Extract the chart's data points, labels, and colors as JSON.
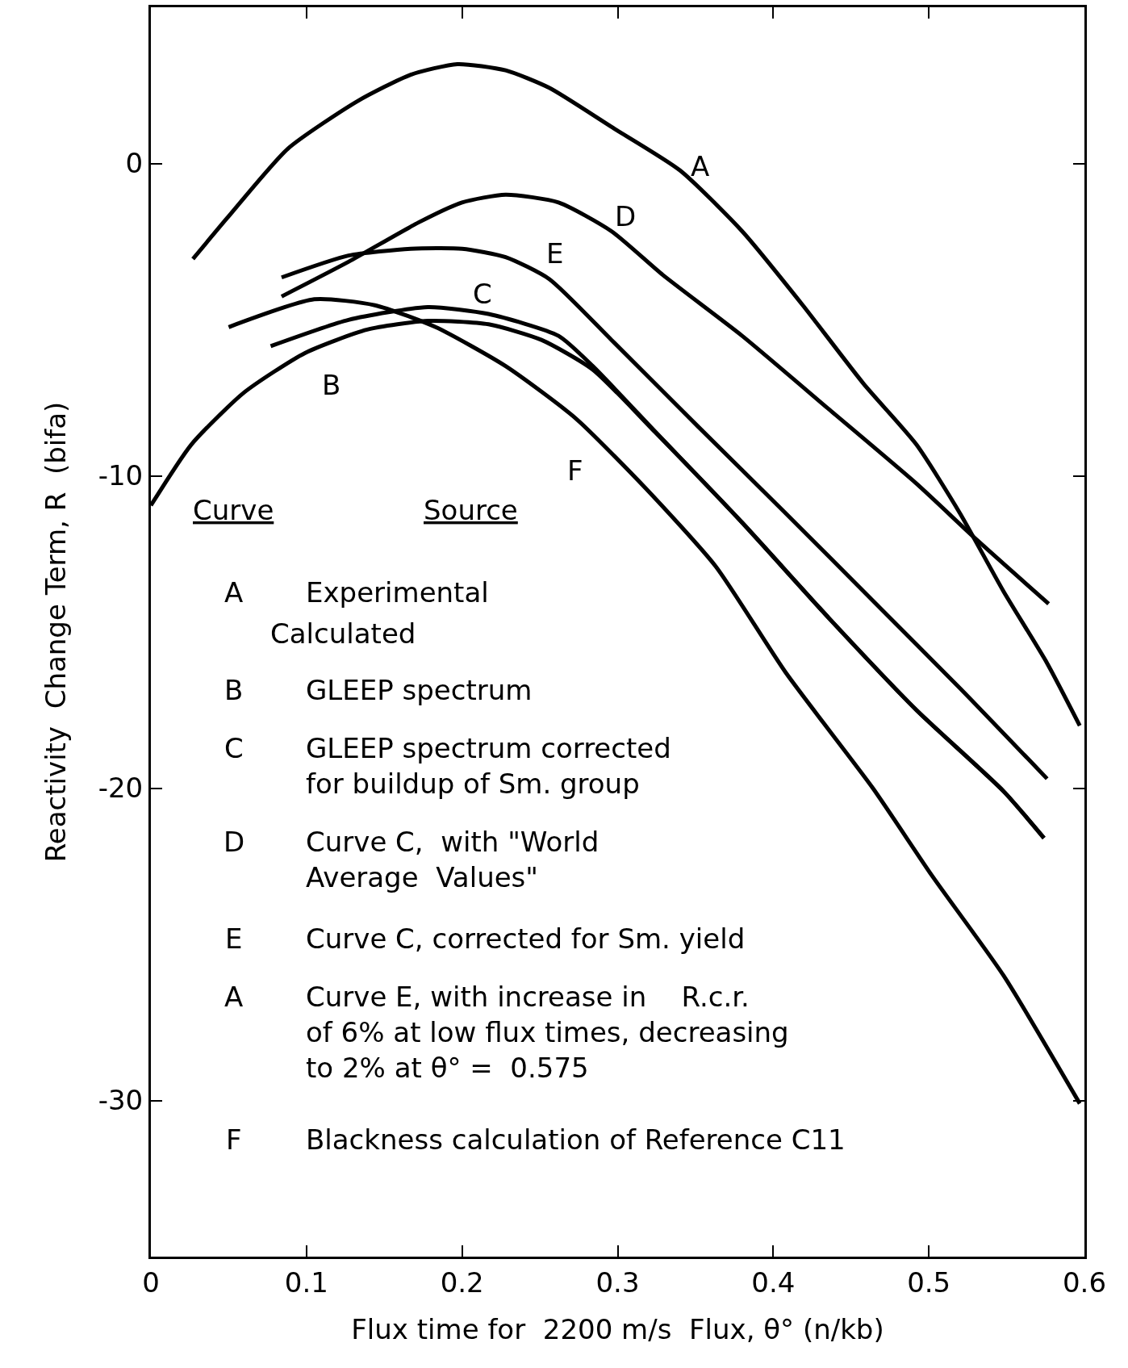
{
  "chart_data": {
    "type": "line",
    "xlabel": "Flux time for  2200 m/s  Flux, θ° (n/kb)",
    "ylabel": "Reactivity  Change Term, R  (bifa)",
    "xlim": [
      0,
      0.6
    ],
    "xticks": [
      0,
      0.1,
      0.2,
      0.3,
      0.4,
      0.5,
      0.6
    ],
    "ylim": [
      -35,
      5
    ],
    "yticks": [
      0,
      -10,
      -20,
      -30
    ],
    "grid": false,
    "marker": "none",
    "line_style": "solid",
    "series": [
      {
        "color": "#000000",
        "x": [
          0.027,
          0.049,
          0.088,
          0.133,
          0.167,
          0.197,
          0.228,
          0.256,
          0.296,
          0.34,
          0.38,
          0.419,
          0.458,
          0.492,
          0.52,
          0.548,
          0.576,
          0.597
        ],
        "values": [
          -3.06,
          -1.75,
          0.47,
          2.0,
          2.84,
          3.18,
          2.98,
          2.42,
          1.17,
          -0.22,
          -2.17,
          -4.54,
          -7.05,
          -9.0,
          -11.2,
          -13.7,
          -16.0,
          -18.0
        ]
      },
      {
        "color": "#000000",
        "x": [
          0.0,
          0.026,
          0.06,
          0.099,
          0.139,
          0.178,
          0.217,
          0.251,
          0.284,
          0.324,
          0.38,
          0.436,
          0.492,
          0.548,
          0.574
        ],
        "values": [
          -10.95,
          -9.0,
          -7.33,
          -6.07,
          -5.32,
          -5.04,
          -5.15,
          -5.65,
          -6.6,
          -8.6,
          -11.5,
          -14.57,
          -17.5,
          -20.1,
          -21.6
        ]
      },
      {
        "color": "#000000",
        "x": [
          0.077,
          0.127,
          0.178,
          0.217,
          0.262,
          0.284,
          0.324,
          0.38,
          0.436,
          0.492,
          0.548,
          0.574
        ],
        "values": [
          -5.85,
          -5.01,
          -4.6,
          -4.82,
          -5.52,
          -6.49,
          -8.58,
          -11.5,
          -14.57,
          -17.5,
          -20.1,
          -21.6
        ]
      },
      {
        "color": "#000000",
        "x": [
          0.084,
          0.127,
          0.172,
          0.2,
          0.228,
          0.262,
          0.296,
          0.329,
          0.38,
          0.436,
          0.492,
          0.531,
          0.577
        ],
        "values": [
          -4.26,
          -3.15,
          -1.89,
          -1.25,
          -1.0,
          -1.25,
          -2.17,
          -3.57,
          -5.52,
          -7.88,
          -10.25,
          -12.06,
          -14.1
        ]
      },
      {
        "color": "#000000",
        "x": [
          0.084,
          0.127,
          0.167,
          0.2,
          0.228,
          0.256,
          0.296,
          0.352,
          0.408,
          0.464,
          0.52,
          0.576
        ],
        "values": [
          -3.65,
          -2.95,
          -2.73,
          -2.73,
          -3.0,
          -3.7,
          -5.65,
          -8.44,
          -11.2,
          -14.0,
          -16.8,
          -19.7
        ]
      },
      {
        "color": "#000000",
        "x": [
          0.05,
          0.105,
          0.144,
          0.183,
          0.228,
          0.273,
          0.318,
          0.363,
          0.408,
          0.464,
          0.502,
          0.548,
          0.597
        ],
        "values": [
          -5.24,
          -4.35,
          -4.54,
          -5.24,
          -6.49,
          -8.16,
          -10.4,
          -12.9,
          -16.3,
          -20.0,
          -22.8,
          -26.0,
          -30.1
        ]
      }
    ],
    "annotations": [
      "A",
      "D",
      "E",
      "C",
      "B",
      "F",
      "Curve",
      "Source",
      "A",
      "Experimental",
      "Calculated",
      "B",
      "GLEEP spectrum",
      "C",
      "GLEEP spectrum corrected\nfor buildup of Sm. group",
      "D",
      "Curve C,  with \"World\nAverage  Values\"",
      "E",
      "Curve C, corrected for Sm. yield",
      "A",
      "Curve E, with increase in    R.c.r.\nof 6% at low flux times, decreasing\nto 2% at θ° =  0.575",
      "F",
      "Blackness calculation of Reference C11"
    ]
  }
}
